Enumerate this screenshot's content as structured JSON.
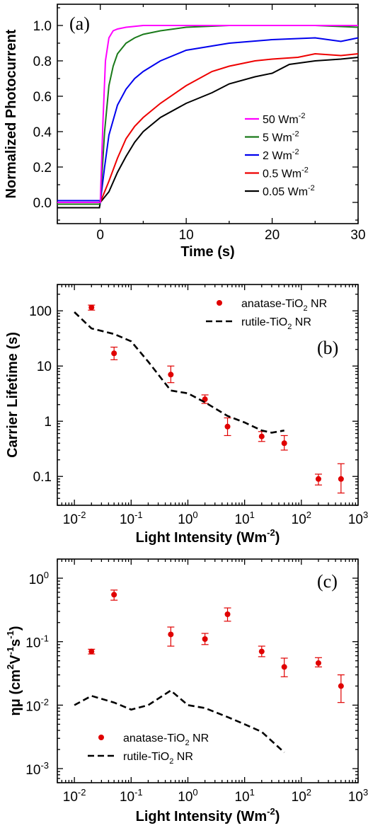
{
  "chart_data": [
    {
      "type": "line",
      "panel_label": "(a)",
      "xlabel": "Time (s)",
      "ylabel": "Normalized Photocurrent",
      "xlim": [
        -5,
        30
      ],
      "ylim": [
        -0.12,
        1.12
      ],
      "xticks": [
        "0",
        "10",
        "20",
        "30"
      ],
      "yticks": [
        "0.0",
        "0.2",
        "0.4",
        "0.6",
        "0.8",
        "1.0"
      ],
      "legend_position": "bottom-right",
      "series": [
        {
          "name": "50 Wm",
          "unit_sup": "-2",
          "color": "#ff00ff",
          "x": [
            -5,
            -0.1,
            0,
            0.3,
            0.6,
            1,
            1.5,
            2,
            3,
            5,
            10,
            15,
            20,
            25,
            30
          ],
          "y": [
            0.0,
            0.0,
            0.0,
            0.45,
            0.8,
            0.93,
            0.97,
            0.98,
            0.99,
            1.0,
            1.0,
            1.0,
            1.0,
            1.0,
            1.0
          ]
        },
        {
          "name": "5 Wm",
          "unit_sup": "-2",
          "color": "#1a7a1a",
          "x": [
            -5,
            -0.1,
            0,
            0.5,
            1,
            1.5,
            2,
            3,
            4,
            5,
            7,
            10,
            15,
            20,
            25,
            30
          ],
          "y": [
            -0.01,
            -0.01,
            0.0,
            0.4,
            0.66,
            0.77,
            0.84,
            0.9,
            0.93,
            0.95,
            0.97,
            0.99,
            1.0,
            1.0,
            1.0,
            0.99
          ]
        },
        {
          "name": "2 Wm",
          "unit_sup": "-2",
          "color": "#0000ee",
          "x": [
            -5,
            -0.1,
            0,
            0.5,
            1,
            2,
            3,
            4,
            5,
            7,
            10,
            15,
            20,
            25,
            28,
            30
          ],
          "y": [
            0.01,
            0.01,
            0.0,
            0.2,
            0.38,
            0.55,
            0.64,
            0.7,
            0.74,
            0.8,
            0.86,
            0.9,
            0.92,
            0.93,
            0.91,
            0.93
          ]
        },
        {
          "name": "0.5 Wm",
          "unit_sup": "-2",
          "color": "#ee0000",
          "x": [
            -5,
            -0.1,
            0,
            1,
            2,
            3,
            4,
            5,
            7,
            10,
            13,
            15,
            18,
            20,
            23,
            25,
            28,
            30
          ],
          "y": [
            0.0,
            0.0,
            0.0,
            0.12,
            0.25,
            0.36,
            0.43,
            0.48,
            0.56,
            0.66,
            0.74,
            0.77,
            0.8,
            0.81,
            0.82,
            0.84,
            0.83,
            0.84
          ]
        },
        {
          "name": "0.05 Wm",
          "unit_sup": "-2",
          "color": "#000000",
          "x": [
            -5,
            -0.1,
            0,
            1,
            2,
            3,
            4,
            5,
            7,
            10,
            13,
            15,
            18,
            20,
            22,
            25,
            28,
            30
          ],
          "y": [
            -0.03,
            -0.03,
            0.0,
            0.06,
            0.17,
            0.26,
            0.34,
            0.4,
            0.48,
            0.56,
            0.62,
            0.67,
            0.71,
            0.73,
            0.78,
            0.8,
            0.81,
            0.82
          ]
        }
      ]
    },
    {
      "type": "scatter",
      "panel_label": "(b)",
      "xlabel": "Light Intensity (Wm",
      "xlabel_sup": "-2",
      "xlabel_end": ")",
      "ylabel": "Carrier Lifetime (s)",
      "xscale": "log",
      "yscale": "log",
      "xlim": [
        0.005,
        1000
      ],
      "ylim": [
        0.03,
        300
      ],
      "xtick_values": [
        0.01,
        0.1,
        1,
        10,
        100,
        1000
      ],
      "xtick_base": [
        "10",
        "10",
        "10",
        "10",
        "10",
        "10"
      ],
      "xtick_exp": [
        "-2",
        "-1",
        "0",
        "1",
        "2",
        "3"
      ],
      "ytick_values": [
        0.1,
        1,
        10,
        100
      ],
      "yticks": [
        "0.1",
        "1",
        "10",
        "100"
      ],
      "legend_position": "top-right",
      "series": [
        {
          "name": "anatase-TiO",
          "sub": "2",
          "name_end": " NR",
          "style": "points",
          "color": "#e00000",
          "x": [
            0.02,
            0.05,
            0.5,
            2,
            5,
            20,
            50,
            200,
            500
          ],
          "y": [
            115,
            17,
            7,
            2.5,
            0.8,
            0.53,
            0.4,
            0.09,
            0.09
          ],
          "err_low": [
            103,
            13,
            5,
            2.1,
            0.55,
            0.43,
            0.3,
            0.07,
            0.05
          ],
          "err_high": [
            127,
            22,
            10,
            3.0,
            1.15,
            0.65,
            0.55,
            0.11,
            0.17
          ]
        },
        {
          "name": "rutile-TiO",
          "sub": "2",
          "name_end": " NR",
          "style": "dashed",
          "color": "#000000",
          "x": [
            0.01,
            0.02,
            0.05,
            0.1,
            0.2,
            0.5,
            1,
            2,
            5,
            10,
            20,
            30,
            50
          ],
          "y": [
            95,
            48,
            38,
            28,
            12,
            3.6,
            3.2,
            2.2,
            1.25,
            0.95,
            0.68,
            0.62,
            0.68
          ]
        }
      ]
    },
    {
      "type": "scatter",
      "panel_label": "(c)",
      "xlabel": "Light Intensity (Wm",
      "xlabel_sup": "-2",
      "xlabel_end": ")",
      "ylabel": "ημ (cm",
      "ylabel_sup1": "2",
      "ylabel_mid": "V",
      "ylabel_sup2": "-1",
      "ylabel_mid2": "s",
      "ylabel_sup3": "-1",
      "ylabel_end": ")",
      "xscale": "log",
      "yscale": "log",
      "xlim": [
        0.005,
        1000
      ],
      "ylim": [
        0.0006,
        2
      ],
      "xtick_values": [
        0.01,
        0.1,
        1,
        10,
        100,
        1000
      ],
      "xtick_base": [
        "10",
        "10",
        "10",
        "10",
        "10",
        "10"
      ],
      "xtick_exp": [
        "-2",
        "-1",
        "0",
        "1",
        "2",
        "3"
      ],
      "ytick_values": [
        0.001,
        0.01,
        0.1,
        1
      ],
      "ytick_base": [
        "10",
        "10",
        "10",
        "10"
      ],
      "ytick_exp": [
        "-3",
        "-2",
        "-1",
        "0"
      ],
      "legend_position": "bottom-left",
      "series": [
        {
          "name": "anatase-TiO",
          "sub": "2",
          "name_end": " NR",
          "style": "points",
          "color": "#e00000",
          "x": [
            0.02,
            0.05,
            0.5,
            2,
            5,
            20,
            50,
            200,
            500
          ],
          "y": [
            0.07,
            0.55,
            0.13,
            0.11,
            0.27,
            0.07,
            0.04,
            0.046,
            0.02
          ],
          "err_low": [
            0.064,
            0.45,
            0.085,
            0.09,
            0.21,
            0.058,
            0.028,
            0.04,
            0.011
          ],
          "err_high": [
            0.076,
            0.65,
            0.17,
            0.135,
            0.34,
            0.085,
            0.055,
            0.056,
            0.03
          ]
        },
        {
          "name": "rutile-TiO",
          "sub": "2",
          "name_end": " NR",
          "style": "dashed",
          "color": "#000000",
          "x": [
            0.01,
            0.02,
            0.05,
            0.1,
            0.2,
            0.5,
            1,
            2,
            5,
            10,
            20,
            50
          ],
          "y": [
            0.01,
            0.014,
            0.011,
            0.0085,
            0.01,
            0.017,
            0.01,
            0.009,
            0.0065,
            0.005,
            0.0038,
            0.0018
          ]
        }
      ]
    }
  ]
}
